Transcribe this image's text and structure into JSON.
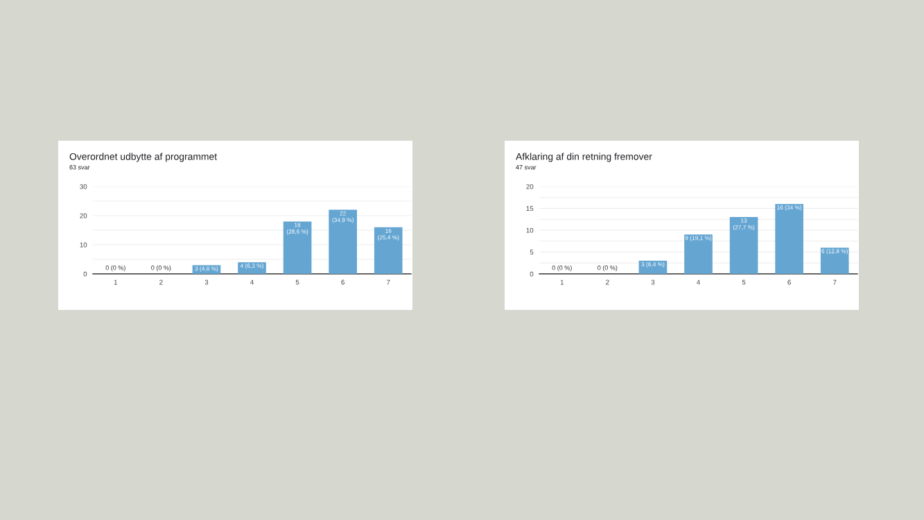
{
  "chart_data": [
    {
      "type": "bar",
      "title": "Overordnet udbytte af programmet",
      "subtitle": "63 svar",
      "categories": [
        "1",
        "2",
        "3",
        "4",
        "5",
        "6",
        "7"
      ],
      "values": [
        0,
        0,
        3,
        4,
        18,
        22,
        16
      ],
      "color": "#64a5d2",
      "value_labels": [
        "0 (0 %)",
        "0 (0 %)",
        "3 (4,8 %)",
        "4 (6,3 %)",
        "18\n(28,6 %)",
        "22\n(34,9 %)",
        "16\n(25,4 %)"
      ],
      "ylim": [
        0,
        30
      ],
      "yticks": [
        0,
        {
          "value": 5,
          "label": null
        },
        10,
        {
          "value": 15,
          "label": null
        },
        20,
        {
          "value": 25,
          "label": null
        },
        30
      ],
      "grid": "y"
    },
    {
      "type": "bar",
      "title": "Afklaring af din retning fremover",
      "subtitle": "47 svar",
      "categories": [
        "1",
        "2",
        "3",
        "4",
        "5",
        "6",
        "7"
      ],
      "values": [
        0,
        0,
        3,
        9,
        13,
        16,
        6
      ],
      "color": "#64a5d2",
      "value_labels": [
        "0 (0 %)",
        "0 (0 %)",
        "3 (6,4 %)",
        "9 (19,1 %)",
        "13\n(27,7 %)",
        "16 (34 %)",
        "6 (12,8 %)"
      ],
      "ylim": [
        0,
        20
      ],
      "yticks": [
        0,
        {
          "value": 2.5,
          "label": null
        },
        5,
        {
          "value": 7.5,
          "label": null
        },
        10,
        {
          "value": 12.5,
          "label": null
        },
        15,
        {
          "value": 17.5,
          "label": null
        },
        20
      ],
      "grid": "y"
    }
  ]
}
